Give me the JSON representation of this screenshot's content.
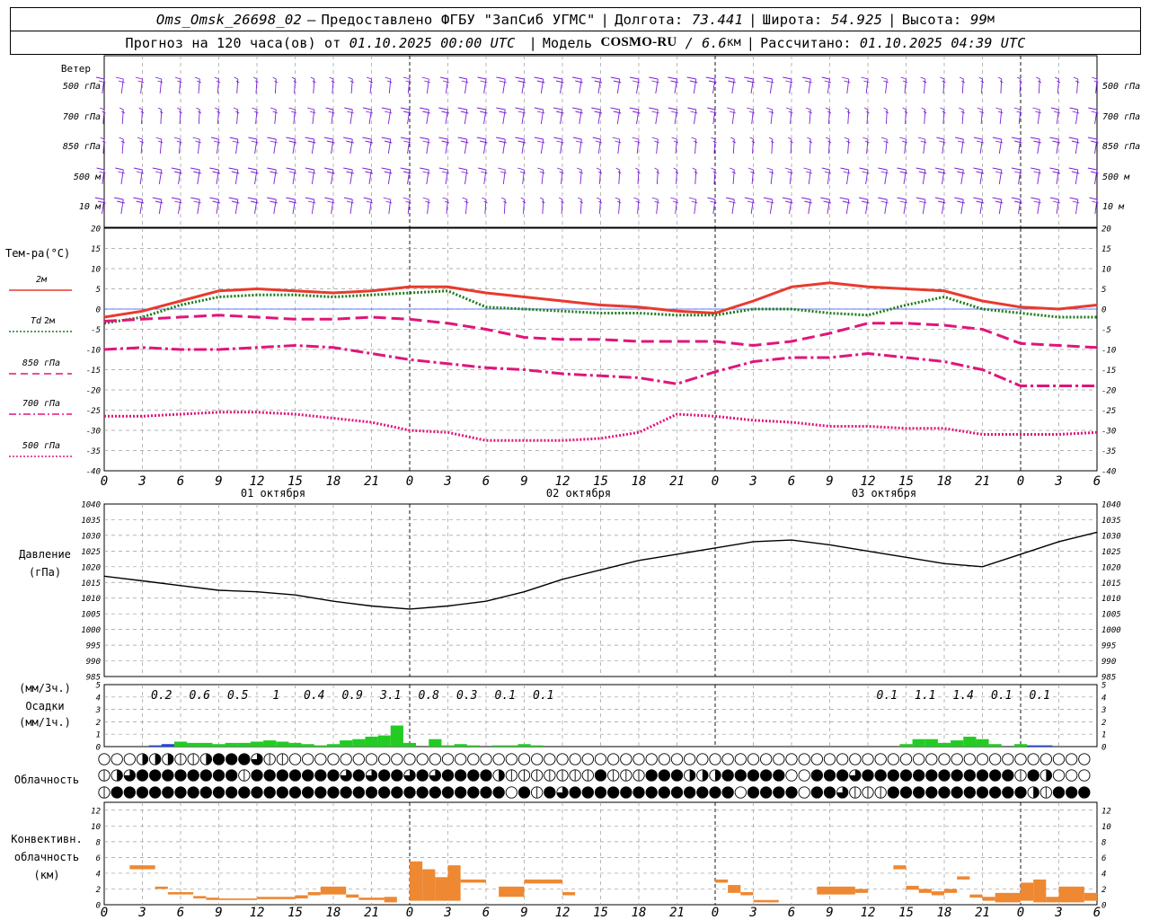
{
  "header": {
    "station": "Oms_Omsk_26698_02",
    "dash": "–",
    "provided": "Предоставлено ФГБУ \"ЗапСиб УГМС\"",
    "lon_label": "Долгота:",
    "lon": "73.441",
    "lat_label": "Широта:",
    "lat": "54.925",
    "alt_label": "Высота:",
    "alt": "99",
    "alt_unit": "м",
    "forecast_label": "Прогноз на 120 часа(ов) от",
    "forecast_start": "01.10.2025 00:00 UTC",
    "model_label": "Модель",
    "model": "COSMO-RU",
    "model_res": "/ 6.6",
    "model_res_unit": "км",
    "calc_label": "Рассчитано:",
    "calc_time": "01.10.2025 04:39 UTC"
  },
  "chart_data": [
    {
      "type": "wind_barbs",
      "label": "Ветер",
      "levels": [
        "500 гПа",
        "700 гПа",
        "850 гПа",
        "500 м",
        "10 м"
      ],
      "color": "#7a1fd6"
    },
    {
      "type": "line",
      "label": "Тем-ра(°C)",
      "ylim": [
        -40,
        20
      ],
      "yticks": [
        -40,
        -35,
        -30,
        -25,
        -20,
        -15,
        -10,
        -5,
        0,
        5,
        10,
        15,
        20
      ],
      "x_ticks": [
        "0",
        "3",
        "6",
        "9",
        "12",
        "15",
        "18",
        "21",
        "0",
        "3",
        "6",
        "9",
        "12",
        "15",
        "18",
        "21",
        "0",
        "3",
        "6",
        "9",
        "12",
        "15",
        "18",
        "21",
        "0",
        "3",
        "6"
      ],
      "days": [
        "01 октября",
        "02 октября",
        "03 октября"
      ],
      "series": [
        {
          "name": "2м",
          "color": "#e83a2e",
          "style": "solid",
          "x": [
            0,
            3,
            6,
            9,
            12,
            15,
            18,
            21,
            24,
            27,
            30,
            33,
            36,
            39,
            42,
            45,
            48,
            51,
            54,
            57,
            60,
            63,
            66,
            69,
            72,
            75,
            78
          ],
          "y": [
            -2,
            -0.5,
            2,
            4.5,
            5,
            4.5,
            4,
            4.5,
            5.5,
            5.5,
            4,
            3,
            2,
            1,
            0.5,
            -0.5,
            -1,
            2,
            5.5,
            6.5,
            5.5,
            5,
            4.5,
            2,
            0.5,
            0,
            1
          ]
        },
        {
          "name": "Td 2м",
          "name_td": "Td",
          "name_rest": "2м",
          "color": "#1a7a1a",
          "style": "dotted",
          "x": [
            0,
            3,
            6,
            9,
            12,
            15,
            18,
            21,
            24,
            27,
            30,
            33,
            36,
            39,
            42,
            45,
            48,
            51,
            54,
            57,
            60,
            63,
            66,
            69,
            72,
            75,
            78
          ],
          "y": [
            -3.5,
            -2,
            1,
            3,
            3.5,
            3.5,
            3,
            3.5,
            4,
            4.5,
            0.5,
            0,
            -0.5,
            -1,
            -1,
            -1.5,
            -1.5,
            0,
            0,
            -1,
            -1.5,
            1,
            3,
            0,
            -1,
            -2,
            -2
          ]
        },
        {
          "name": "850 гПа",
          "color": "#e0157a",
          "style": "dashed",
          "x": [
            0,
            3,
            6,
            9,
            12,
            15,
            18,
            21,
            24,
            27,
            30,
            33,
            36,
            39,
            42,
            45,
            48,
            51,
            54,
            57,
            60,
            63,
            66,
            69,
            72,
            75,
            78
          ],
          "y": [
            -3,
            -2.5,
            -2,
            -1.5,
            -2,
            -2.5,
            -2.5,
            -2,
            -2.5,
            -3.5,
            -5,
            -7,
            -7.5,
            -7.5,
            -8,
            -8,
            -8,
            -9,
            -8,
            -6,
            -3.5,
            -3.5,
            -4,
            -5,
            -8.5,
            -9,
            -9.5
          ]
        },
        {
          "name": "700 гПа",
          "color": "#e0157a",
          "style": "dashdot",
          "x": [
            0,
            3,
            6,
            9,
            12,
            15,
            18,
            21,
            24,
            27,
            30,
            33,
            36,
            39,
            42,
            45,
            48,
            51,
            54,
            57,
            60,
            63,
            66,
            69,
            72,
            75,
            78
          ],
          "y": [
            -10,
            -9.5,
            -10,
            -10,
            -9.5,
            -9,
            -9.5,
            -11,
            -12.5,
            -13.5,
            -14.5,
            -15,
            -16,
            -16.5,
            -17,
            -18.5,
            -15.5,
            -13,
            -12,
            -12,
            -11,
            -12,
            -13,
            -15,
            -19,
            -19,
            -19
          ]
        },
        {
          "name": "500 гПа",
          "color": "#e0157a",
          "style": "dotted",
          "x": [
            0,
            3,
            6,
            9,
            12,
            15,
            18,
            21,
            24,
            27,
            30,
            33,
            36,
            39,
            42,
            45,
            48,
            51,
            54,
            57,
            60,
            63,
            66,
            69,
            72,
            75,
            78
          ],
          "y": [
            -26.5,
            -26.5,
            -26,
            -25.5,
            -25.5,
            -26,
            -27,
            -28,
            -30,
            -30.5,
            -32.5,
            -32.5,
            -32.5,
            -32,
            -30.5,
            -26,
            -26.5,
            -27.5,
            -28,
            -29,
            -29,
            -29.5,
            -29.5,
            -31,
            -31,
            -31,
            -30.5
          ]
        }
      ]
    },
    {
      "type": "line",
      "label": "Давление",
      "label2": "(гПа)",
      "ylim": [
        985,
        1040
      ],
      "yticks": [
        985,
        990,
        995,
        1000,
        1005,
        1010,
        1015,
        1020,
        1025,
        1030,
        1035,
        1040
      ],
      "series": [
        {
          "name": "Давление",
          "color": "#000000",
          "x": [
            0,
            3,
            6,
            9,
            12,
            15,
            18,
            21,
            24,
            27,
            30,
            33,
            36,
            39,
            42,
            45,
            48,
            51,
            54,
            57,
            60,
            63,
            66,
            69,
            72,
            75,
            78
          ],
          "y": [
            1017,
            1015.5,
            1014,
            1012.5,
            1012,
            1011,
            1009,
            1007.5,
            1006.5,
            1007.5,
            1009,
            1012,
            1016,
            1019,
            1022,
            1024,
            1026,
            1028,
            1028.5,
            1027,
            1025,
            1023,
            1021,
            1020,
            1024,
            1028,
            1031
          ]
        }
      ]
    },
    {
      "type": "bar",
      "label": "(мм/3ч.)",
      "label2": "Осадки",
      "label3": "(мм/1ч.)",
      "ylim": [
        0,
        5
      ],
      "yticks": [
        0,
        1,
        2,
        3,
        4,
        5
      ],
      "totals_3h": [
        {
          "x": 4.5,
          "v": "0.2"
        },
        {
          "x": 7.5,
          "v": "0.6"
        },
        {
          "x": 10.5,
          "v": "0.5"
        },
        {
          "x": 13.5,
          "v": "1"
        },
        {
          "x": 16.5,
          "v": "0.4"
        },
        {
          "x": 19.5,
          "v": "0.9"
        },
        {
          "x": 22.5,
          "v": "3.1"
        },
        {
          "x": 25.5,
          "v": "0.8"
        },
        {
          "x": 28.5,
          "v": "0.3"
        },
        {
          "x": 31.5,
          "v": "0.1"
        },
        {
          "x": 34.5,
          "v": "0.1"
        },
        {
          "x": 61.5,
          "v": "0.1"
        },
        {
          "x": 64.5,
          "v": "1.1"
        },
        {
          "x": 67.5,
          "v": "1.4"
        },
        {
          "x": 70.5,
          "v": "0.1"
        },
        {
          "x": 73.5,
          "v": "0.1"
        }
      ],
      "hourly": [
        {
          "x": 4,
          "v": 0.1,
          "kind": "snow"
        },
        {
          "x": 5,
          "v": 0.2,
          "kind": "snow"
        },
        {
          "x": 6,
          "v": 0.4
        },
        {
          "x": 7,
          "v": 0.3
        },
        {
          "x": 8,
          "v": 0.3
        },
        {
          "x": 9,
          "v": 0.2
        },
        {
          "x": 10,
          "v": 0.3
        },
        {
          "x": 11,
          "v": 0.3
        },
        {
          "x": 12,
          "v": 0.4
        },
        {
          "x": 13,
          "v": 0.5
        },
        {
          "x": 14,
          "v": 0.4
        },
        {
          "x": 15,
          "v": 0.3
        },
        {
          "x": 16,
          "v": 0.2
        },
        {
          "x": 17,
          "v": 0.1
        },
        {
          "x": 18,
          "v": 0.2
        },
        {
          "x": 19,
          "v": 0.5
        },
        {
          "x": 20,
          "v": 0.6
        },
        {
          "x": 21,
          "v": 0.8
        },
        {
          "x": 22,
          "v": 0.9
        },
        {
          "x": 23,
          "v": 1.7
        },
        {
          "x": 24,
          "v": 0.3
        },
        {
          "x": 26,
          "v": 0.6
        },
        {
          "x": 27,
          "v": 0.1
        },
        {
          "x": 28,
          "v": 0.2
        },
        {
          "x": 29,
          "v": 0.1
        },
        {
          "x": 31,
          "v": 0.1
        },
        {
          "x": 32,
          "v": 0.1
        },
        {
          "x": 33,
          "v": 0.2
        },
        {
          "x": 34,
          "v": 0.1
        },
        {
          "x": 63,
          "v": 0.2
        },
        {
          "x": 64,
          "v": 0.6
        },
        {
          "x": 65,
          "v": 0.6
        },
        {
          "x": 66,
          "v": 0.3
        },
        {
          "x": 67,
          "v": 0.5
        },
        {
          "x": 68,
          "v": 0.8
        },
        {
          "x": 69,
          "v": 0.6
        },
        {
          "x": 70,
          "v": 0.2
        },
        {
          "x": 72,
          "v": 0.2
        },
        {
          "x": 73,
          "v": 0.1,
          "kind": "snow"
        },
        {
          "x": 74,
          "v": 0.1,
          "kind": "snow"
        }
      ]
    },
    {
      "type": "cloud_symbols",
      "label": "Облачность",
      "rows": [
        "000222112444311000000000000000000000000000000000000000000000000000000000000000",
        "123444444441444444434344343444421111111411144422244444004443444444444444142000",
        "144444444444444444444444444444440414344444444444440444404431114444444444421444"
      ]
    },
    {
      "type": "bar",
      "label": "Конвективн.",
      "label2": "облачность",
      "label3": "(км)",
      "ylim": [
        0,
        13
      ],
      "yticks": [
        0,
        2,
        4,
        6,
        8,
        10,
        12
      ],
      "units": "km",
      "layers": [
        {
          "x": 2.5,
          "w": 2,
          "b": 4.5,
          "t": 5
        },
        {
          "x": 4.5,
          "w": 1,
          "b": 2,
          "t": 2.3
        },
        {
          "x": 5.5,
          "w": 2,
          "b": 1.3,
          "t": 1.6
        },
        {
          "x": 7.5,
          "w": 1,
          "b": 0.8,
          "t": 1.1
        },
        {
          "x": 8.5,
          "w": 1,
          "b": 0.6,
          "t": 0.9
        },
        {
          "x": 9.5,
          "w": 3,
          "b": 0.6,
          "t": 0.8
        },
        {
          "x": 12.5,
          "w": 3,
          "b": 0.7,
          "t": 1.0
        },
        {
          "x": 15.5,
          "w": 1,
          "b": 0.8,
          "t": 1.2
        },
        {
          "x": 16.5,
          "w": 1,
          "b": 1.2,
          "t": 1.6
        },
        {
          "x": 17.5,
          "w": 2,
          "b": 1.3,
          "t": 2.3
        },
        {
          "x": 19.5,
          "w": 1,
          "b": 0.9,
          "t": 1.3
        },
        {
          "x": 20.5,
          "w": 2,
          "b": 0.6,
          "t": 0.9
        },
        {
          "x": 22.5,
          "w": 1,
          "b": 0.3,
          "t": 1.0
        },
        {
          "x": 24.5,
          "w": 1,
          "b": 0.5,
          "t": 5.5
        },
        {
          "x": 25.5,
          "w": 1,
          "b": 0.5,
          "t": 4.5
        },
        {
          "x": 26.5,
          "w": 1,
          "b": 0.5,
          "t": 3.5
        },
        {
          "x": 27.5,
          "w": 1,
          "b": 0.5,
          "t": 5
        },
        {
          "x": 28.5,
          "w": 2,
          "b": 2.8,
          "t": 3.2
        },
        {
          "x": 31.5,
          "w": 2,
          "b": 1.0,
          "t": 2.3
        },
        {
          "x": 33.5,
          "w": 3,
          "b": 2.7,
          "t": 3.2
        },
        {
          "x": 36.5,
          "w": 1,
          "b": 1.2,
          "t": 1.6
        },
        {
          "x": 48.5,
          "w": 1,
          "b": 2.8,
          "t": 3.2
        },
        {
          "x": 49.5,
          "w": 1,
          "b": 1.5,
          "t": 2.5
        },
        {
          "x": 50.5,
          "w": 1,
          "b": 1.2,
          "t": 1.6
        },
        {
          "x": 51.5,
          "w": 2,
          "b": 0.3,
          "t": 0.6
        },
        {
          "x": 56.5,
          "w": 3,
          "b": 1.3,
          "t": 2.3
        },
        {
          "x": 59.5,
          "w": 1,
          "b": 1.5,
          "t": 2.0
        },
        {
          "x": 62.5,
          "w": 1,
          "b": 4.5,
          "t": 5
        },
        {
          "x": 63.5,
          "w": 1,
          "b": 1.9,
          "t": 2.4
        },
        {
          "x": 64.5,
          "w": 1,
          "b": 1.5,
          "t": 2.0
        },
        {
          "x": 65.5,
          "w": 1,
          "b": 1.2,
          "t": 1.7
        },
        {
          "x": 66.5,
          "w": 1,
          "b": 1.5,
          "t": 2.0
        },
        {
          "x": 67.5,
          "w": 1,
          "b": 3.2,
          "t": 3.6
        },
        {
          "x": 68.5,
          "w": 1,
          "b": 0.9,
          "t": 1.3
        },
        {
          "x": 69.5,
          "w": 1,
          "b": 0.5,
          "t": 1.0
        },
        {
          "x": 70.5,
          "w": 2,
          "b": 0.3,
          "t": 1.5
        },
        {
          "x": 72.5,
          "w": 1,
          "b": 0.5,
          "t": 2.8
        },
        {
          "x": 73.5,
          "w": 1,
          "b": 0.3,
          "t": 3.2
        },
        {
          "x": 74.5,
          "w": 1,
          "b": 0.3,
          "t": 1.0
        },
        {
          "x": 75.5,
          "w": 2,
          "b": 0.3,
          "t": 2.3
        },
        {
          "x": 77.5,
          "w": 1,
          "b": 0.5,
          "t": 1.5
        }
      ]
    }
  ]
}
